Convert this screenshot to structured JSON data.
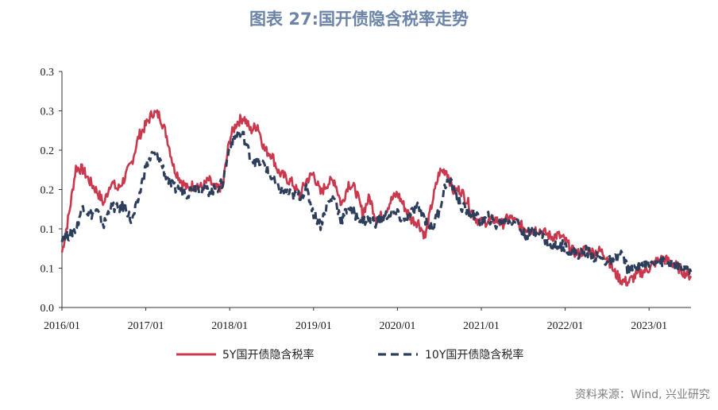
{
  "title": "图表 27:国开债隐含税率走势",
  "source": "资料来源：Wind, 兴业研究",
  "colors": {
    "series_5y": "#c9384d",
    "series_10y": "#2d3e5c",
    "title": "#6b84a8"
  },
  "chart_data": {
    "type": "line",
    "title": "图表 27:国开债隐含税率走势",
    "xlabel": "",
    "ylabel": "",
    "x_ticks": [
      "2016/01",
      "2017/01",
      "2018/01",
      "2019/01",
      "2020/01",
      "2021/01",
      "2022/01",
      "2023/01"
    ],
    "y_ticks": [
      "0.3",
      "0.3",
      "0.2",
      "0.2",
      "0.1",
      "0.1",
      "0.0"
    ],
    "y_tick_values": [
      0.3,
      0.25,
      0.2,
      0.15,
      0.1,
      0.05,
      0.0
    ],
    "ylim": [
      0,
      0.3
    ],
    "xlim": [
      "2016/01",
      "2023/07"
    ],
    "grid": false,
    "legend_position": "bottom",
    "series": [
      {
        "name": "5Y国开债隐含税率",
        "style": "solid",
        "x": [
          "2016/01",
          "2016/02",
          "2016/03",
          "2016/04",
          "2016/05",
          "2016/06",
          "2016/07",
          "2016/08",
          "2016/09",
          "2016/10",
          "2016/11",
          "2016/12",
          "2017/01",
          "2017/02",
          "2017/03",
          "2017/04",
          "2017/05",
          "2017/06",
          "2017/07",
          "2017/08",
          "2017/09",
          "2017/10",
          "2017/11",
          "2017/12",
          "2018/01",
          "2018/02",
          "2018/03",
          "2018/04",
          "2018/05",
          "2018/06",
          "2018/07",
          "2018/08",
          "2018/09",
          "2018/10",
          "2018/11",
          "2018/12",
          "2019/01",
          "2019/02",
          "2019/03",
          "2019/04",
          "2019/05",
          "2019/06",
          "2019/07",
          "2019/08",
          "2019/09",
          "2019/10",
          "2019/11",
          "2019/12",
          "2020/01",
          "2020/02",
          "2020/03",
          "2020/04",
          "2020/05",
          "2020/06",
          "2020/07",
          "2020/08",
          "2020/09",
          "2020/10",
          "2020/11",
          "2020/12",
          "2021/01",
          "2021/02",
          "2021/03",
          "2021/04",
          "2021/05",
          "2021/06",
          "2021/07",
          "2021/08",
          "2021/09",
          "2021/10",
          "2021/11",
          "2021/12",
          "2022/01",
          "2022/02",
          "2022/03",
          "2022/04",
          "2022/05",
          "2022/06",
          "2022/07",
          "2022/08",
          "2022/09",
          "2022/10",
          "2022/11",
          "2022/12",
          "2023/01",
          "2023/02",
          "2023/03",
          "2023/04",
          "2023/05",
          "2023/06",
          "2023/07"
        ],
        "values": [
          0.07,
          0.118,
          0.178,
          0.175,
          0.16,
          0.148,
          0.132,
          0.16,
          0.15,
          0.165,
          0.185,
          0.218,
          0.232,
          0.248,
          0.244,
          0.218,
          0.178,
          0.162,
          0.15,
          0.158,
          0.152,
          0.162,
          0.15,
          0.155,
          0.215,
          0.235,
          0.242,
          0.225,
          0.232,
          0.2,
          0.195,
          0.172,
          0.165,
          0.158,
          0.142,
          0.162,
          0.17,
          0.145,
          0.158,
          0.162,
          0.13,
          0.158,
          0.15,
          0.12,
          0.14,
          0.112,
          0.118,
          0.135,
          0.145,
          0.128,
          0.112,
          0.108,
          0.09,
          0.135,
          0.172,
          0.175,
          0.148,
          0.15,
          0.135,
          0.115,
          0.108,
          0.11,
          0.112,
          0.106,
          0.115,
          0.108,
          0.102,
          0.098,
          0.1,
          0.095,
          0.09,
          0.092,
          0.085,
          0.072,
          0.068,
          0.075,
          0.07,
          0.072,
          0.065,
          0.045,
          0.035,
          0.032,
          0.04,
          0.045,
          0.05,
          0.058,
          0.062,
          0.058,
          0.052,
          0.045,
          0.04
        ]
      },
      {
        "name": "10Y国开债隐含税率",
        "style": "dashed",
        "x": [
          "2016/01",
          "2016/02",
          "2016/03",
          "2016/04",
          "2016/05",
          "2016/06",
          "2016/07",
          "2016/08",
          "2016/09",
          "2016/10",
          "2016/11",
          "2016/12",
          "2017/01",
          "2017/02",
          "2017/03",
          "2017/04",
          "2017/05",
          "2017/06",
          "2017/07",
          "2017/08",
          "2017/09",
          "2017/10",
          "2017/11",
          "2017/12",
          "2018/01",
          "2018/02",
          "2018/03",
          "2018/04",
          "2018/05",
          "2018/06",
          "2018/07",
          "2018/08",
          "2018/09",
          "2018/10",
          "2018/11",
          "2018/12",
          "2019/01",
          "2019/02",
          "2019/03",
          "2019/04",
          "2019/05",
          "2019/06",
          "2019/07",
          "2019/08",
          "2019/09",
          "2019/10",
          "2019/11",
          "2019/12",
          "2020/01",
          "2020/02",
          "2020/03",
          "2020/04",
          "2020/05",
          "2020/06",
          "2020/07",
          "2020/08",
          "2020/09",
          "2020/10",
          "2020/11",
          "2020/12",
          "2021/01",
          "2021/02",
          "2021/03",
          "2021/04",
          "2021/05",
          "2021/06",
          "2021/07",
          "2021/08",
          "2021/09",
          "2021/10",
          "2021/11",
          "2021/12",
          "2022/01",
          "2022/02",
          "2022/03",
          "2022/04",
          "2022/05",
          "2022/06",
          "2022/07",
          "2022/08",
          "2022/09",
          "2022/10",
          "2022/11",
          "2022/12",
          "2023/01",
          "2023/02",
          "2023/03",
          "2023/04",
          "2023/05",
          "2023/06",
          "2023/07"
        ],
        "values": [
          0.09,
          0.092,
          0.1,
          0.13,
          0.118,
          0.122,
          0.105,
          0.13,
          0.125,
          0.13,
          0.108,
          0.14,
          0.18,
          0.195,
          0.188,
          0.165,
          0.152,
          0.15,
          0.145,
          0.155,
          0.15,
          0.148,
          0.15,
          0.158,
          0.205,
          0.22,
          0.218,
          0.19,
          0.185,
          0.182,
          0.165,
          0.15,
          0.148,
          0.142,
          0.142,
          0.15,
          0.12,
          0.105,
          0.132,
          0.14,
          0.11,
          0.128,
          0.118,
          0.11,
          0.112,
          0.108,
          0.115,
          0.12,
          0.118,
          0.11,
          0.12,
          0.128,
          0.112,
          0.1,
          0.125,
          0.16,
          0.155,
          0.13,
          0.122,
          0.118,
          0.108,
          0.115,
          0.105,
          0.108,
          0.11,
          0.112,
          0.092,
          0.095,
          0.098,
          0.088,
          0.075,
          0.08,
          0.078,
          0.07,
          0.068,
          0.072,
          0.065,
          0.062,
          0.058,
          0.06,
          0.07,
          0.048,
          0.05,
          0.055,
          0.055,
          0.062,
          0.058,
          0.055,
          0.052,
          0.05,
          0.045
        ]
      }
    ]
  }
}
